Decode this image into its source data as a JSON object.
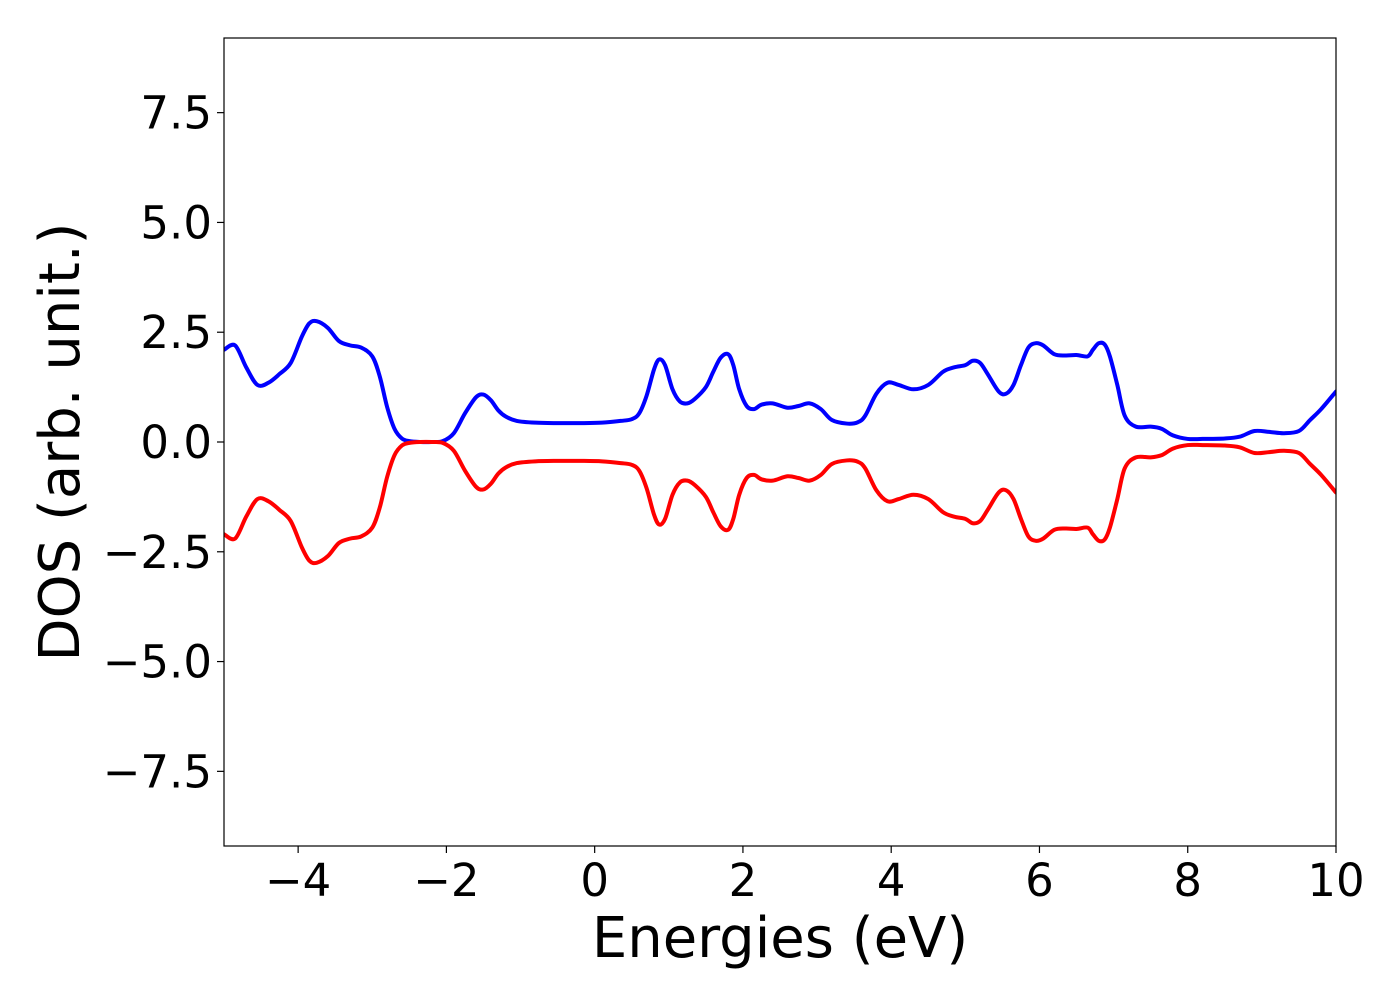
{
  "chart_data": {
    "type": "line",
    "xlabel": "Energies (eV)",
    "ylabel": "DOS (arb. unit.)",
    "xlim": [
      -5,
      10
    ],
    "ylim": [
      -9.2,
      9.2
    ],
    "grid": false,
    "x_ticks": [
      -4,
      -2,
      0,
      2,
      4,
      6,
      8,
      10
    ],
    "x_tick_labels": [
      "−4",
      "−2",
      "0",
      "2",
      "4",
      "6",
      "8",
      "10"
    ],
    "y_ticks": [
      7.5,
      5.0,
      2.5,
      0.0,
      -2.5,
      -5.0,
      -7.5
    ],
    "y_tick_labels": [
      "7.5",
      "5.0",
      "2.5",
      "0.0",
      "−2.5",
      "−5.0",
      "−7.5"
    ],
    "series": [
      {
        "color": "#0000ff",
        "x": [
          -5.0,
          -4.85,
          -4.7,
          -4.55,
          -4.4,
          -4.25,
          -4.1,
          -3.95,
          -3.85,
          -3.75,
          -3.6,
          -3.45,
          -3.3,
          -3.15,
          -3.0,
          -2.9,
          -2.8,
          -2.7,
          -2.6,
          -2.5,
          -2.35,
          -2.2,
          -2.05,
          -1.9,
          -1.75,
          -1.6,
          -1.5,
          -1.4,
          -1.3,
          -1.2,
          -1.05,
          -0.8,
          -0.5,
          -0.2,
          0.1,
          0.35,
          0.5,
          0.6,
          0.7,
          0.8,
          0.87,
          0.95,
          1.05,
          1.15,
          1.25,
          1.35,
          1.5,
          1.6,
          1.7,
          1.8,
          1.87,
          1.95,
          2.05,
          2.15,
          2.25,
          2.4,
          2.6,
          2.75,
          2.9,
          3.05,
          3.2,
          3.4,
          3.55,
          3.65,
          3.8,
          3.95,
          4.1,
          4.3,
          4.5,
          4.7,
          4.85,
          5.0,
          5.1,
          5.2,
          5.3,
          5.45,
          5.55,
          5.65,
          5.75,
          5.85,
          5.95,
          6.05,
          6.2,
          6.35,
          6.5,
          6.65,
          6.72,
          6.8,
          6.88,
          6.95,
          7.05,
          7.15,
          7.3,
          7.5,
          7.65,
          7.8,
          8.0,
          8.2,
          8.5,
          8.7,
          8.9,
          9.1,
          9.3,
          9.5,
          9.65,
          9.8,
          10.0
        ],
        "y": [
          2.1,
          2.2,
          1.7,
          1.3,
          1.35,
          1.55,
          1.8,
          2.4,
          2.7,
          2.75,
          2.6,
          2.3,
          2.2,
          2.15,
          1.95,
          1.5,
          0.8,
          0.3,
          0.08,
          0.02,
          0.0,
          0.0,
          0.02,
          0.2,
          0.65,
          1.02,
          1.08,
          0.95,
          0.72,
          0.58,
          0.48,
          0.44,
          0.43,
          0.43,
          0.44,
          0.48,
          0.52,
          0.65,
          1.05,
          1.65,
          1.88,
          1.75,
          1.2,
          0.92,
          0.88,
          0.98,
          1.25,
          1.6,
          1.92,
          2.0,
          1.75,
          1.2,
          0.82,
          0.75,
          0.85,
          0.88,
          0.78,
          0.82,
          0.88,
          0.75,
          0.5,
          0.42,
          0.45,
          0.6,
          1.1,
          1.35,
          1.3,
          1.2,
          1.3,
          1.6,
          1.7,
          1.75,
          1.85,
          1.8,
          1.55,
          1.15,
          1.1,
          1.3,
          1.75,
          2.15,
          2.25,
          2.2,
          2.0,
          1.97,
          1.98,
          1.95,
          2.1,
          2.25,
          2.22,
          1.95,
          1.3,
          0.6,
          0.35,
          0.35,
          0.3,
          0.15,
          0.07,
          0.07,
          0.08,
          0.12,
          0.25,
          0.23,
          0.2,
          0.25,
          0.5,
          0.75,
          1.15
        ]
      },
      {
        "color": "#ff0000",
        "x": [
          -5.0,
          -4.85,
          -4.7,
          -4.55,
          -4.4,
          -4.25,
          -4.1,
          -3.95,
          -3.85,
          -3.75,
          -3.6,
          -3.45,
          -3.3,
          -3.15,
          -3.0,
          -2.9,
          -2.8,
          -2.7,
          -2.6,
          -2.5,
          -2.35,
          -2.2,
          -2.05,
          -1.9,
          -1.75,
          -1.6,
          -1.5,
          -1.4,
          -1.3,
          -1.2,
          -1.05,
          -0.8,
          -0.5,
          -0.2,
          0.1,
          0.35,
          0.5,
          0.6,
          0.7,
          0.8,
          0.87,
          0.95,
          1.05,
          1.15,
          1.25,
          1.35,
          1.5,
          1.6,
          1.7,
          1.8,
          1.87,
          1.95,
          2.05,
          2.15,
          2.25,
          2.4,
          2.6,
          2.75,
          2.9,
          3.05,
          3.2,
          3.4,
          3.55,
          3.65,
          3.8,
          3.95,
          4.1,
          4.3,
          4.5,
          4.7,
          4.85,
          5.0,
          5.1,
          5.2,
          5.3,
          5.45,
          5.55,
          5.65,
          5.75,
          5.85,
          5.95,
          6.05,
          6.2,
          6.35,
          6.5,
          6.65,
          6.72,
          6.8,
          6.88,
          6.95,
          7.05,
          7.15,
          7.3,
          7.5,
          7.65,
          7.8,
          8.0,
          8.2,
          8.5,
          8.7,
          8.9,
          9.1,
          9.3,
          9.5,
          9.65,
          9.8,
          10.0
        ],
        "y": [
          -2.1,
          -2.2,
          -1.7,
          -1.3,
          -1.35,
          -1.55,
          -1.8,
          -2.4,
          -2.7,
          -2.75,
          -2.6,
          -2.3,
          -2.2,
          -2.15,
          -1.95,
          -1.5,
          -0.8,
          -0.3,
          -0.08,
          -0.02,
          0.0,
          0.0,
          -0.02,
          -0.2,
          -0.65,
          -1.02,
          -1.08,
          -0.95,
          -0.72,
          -0.58,
          -0.48,
          -0.44,
          -0.43,
          -0.43,
          -0.44,
          -0.48,
          -0.52,
          -0.65,
          -1.05,
          -1.65,
          -1.88,
          -1.75,
          -1.2,
          -0.92,
          -0.88,
          -0.98,
          -1.25,
          -1.6,
          -1.92,
          -2.0,
          -1.75,
          -1.2,
          -0.82,
          -0.75,
          -0.85,
          -0.88,
          -0.78,
          -0.82,
          -0.88,
          -0.75,
          -0.5,
          -0.42,
          -0.45,
          -0.6,
          -1.1,
          -1.35,
          -1.3,
          -1.2,
          -1.3,
          -1.6,
          -1.7,
          -1.75,
          -1.85,
          -1.8,
          -1.55,
          -1.15,
          -1.1,
          -1.3,
          -1.75,
          -2.15,
          -2.25,
          -2.2,
          -2.0,
          -1.97,
          -1.98,
          -1.95,
          -2.1,
          -2.25,
          -2.22,
          -1.95,
          -1.3,
          -0.6,
          -0.35,
          -0.35,
          -0.3,
          -0.15,
          -0.07,
          -0.07,
          -0.08,
          -0.12,
          -0.25,
          -0.23,
          -0.2,
          -0.25,
          -0.5,
          -0.75,
          -1.15
        ]
      }
    ]
  }
}
